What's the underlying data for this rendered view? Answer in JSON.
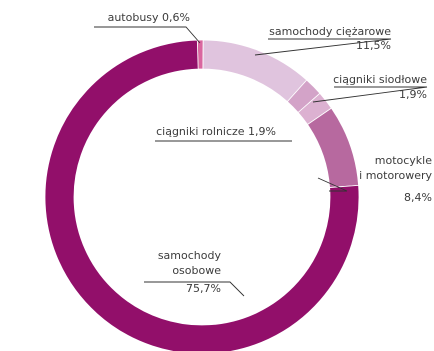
{
  "chart_data": {
    "type": "pie",
    "donut": true,
    "title": "",
    "slices": [
      {
        "label_lines": [
          "autobusy 0,6%"
        ],
        "value": 0.6,
        "color": "#d9669f"
      },
      {
        "label_lines": [
          "samochody ciężarowe",
          "11,5%"
        ],
        "value": 11.5,
        "color": "#e0c4de"
      },
      {
        "label_lines": [
          "ciągniki siodłowe",
          "1,9%"
        ],
        "value": 1.9,
        "color": "#d3a3c8"
      },
      {
        "label_lines": [
          "ciągniki rolnicze 1,9%"
        ],
        "value": 1.9,
        "color": "#dcb1d1"
      },
      {
        "label_lines": [
          "motocykle",
          "i motorowery",
          "8,4%"
        ],
        "value": 8.4,
        "color": "#b7699f"
      },
      {
        "label_lines": [
          "samochody",
          "osobowe",
          "75,7%"
        ],
        "value": 75.7,
        "color": "#920f6a"
      }
    ]
  }
}
